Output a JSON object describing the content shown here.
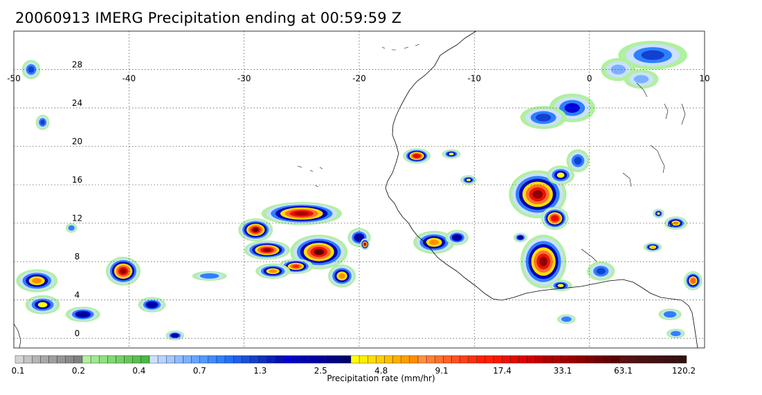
{
  "title": "20060913 IMERG Precipitation ending at 00:59:59 Z",
  "map": {
    "lon_range": [
      -50,
      10
    ],
    "lat_range": [
      -1,
      32
    ],
    "lon_ticks": [
      -50,
      -40,
      -30,
      -20,
      -10,
      0,
      10
    ],
    "lon_tick_labels": [
      "-50",
      "-40",
      "-30",
      "-20",
      "-10",
      "0",
      "10"
    ],
    "lat_ticks": [
      0,
      4,
      8,
      12,
      16,
      20,
      24,
      28
    ],
    "lat_tick_labels": [
      "0",
      "4",
      "8",
      "12",
      "16",
      "20",
      "24",
      "28"
    ],
    "gridlines": true,
    "coastline_color": "#000000",
    "rain_cells": [
      {
        "lon": 5.5,
        "lat": 29.5,
        "rx": 3.0,
        "ry": 1.5,
        "level": 0.35
      },
      {
        "lon": 2.5,
        "lat": 28.0,
        "rx": 1.5,
        "ry": 1.2,
        "level": 0.25
      },
      {
        "lon": -1.5,
        "lat": 24.0,
        "rx": 2.0,
        "ry": 1.5,
        "level": 0.4
      },
      {
        "lon": -4.0,
        "lat": 23.0,
        "rx": 2.0,
        "ry": 1.2,
        "level": 0.35
      },
      {
        "lon": 4.5,
        "lat": 27.0,
        "rx": 1.5,
        "ry": 1.0,
        "level": 0.25
      },
      {
        "lon": -15.0,
        "lat": 19.0,
        "rx": 1.2,
        "ry": 0.8,
        "level": 0.75
      },
      {
        "lon": -12.0,
        "lat": 19.2,
        "rx": 0.8,
        "ry": 0.5,
        "level": 0.5
      },
      {
        "lon": -10.5,
        "lat": 16.5,
        "rx": 0.7,
        "ry": 0.5,
        "level": 0.5
      },
      {
        "lon": -4.5,
        "lat": 15.0,
        "rx": 2.5,
        "ry": 2.5,
        "level": 0.85
      },
      {
        "lon": -3.0,
        "lat": 12.5,
        "rx": 1.2,
        "ry": 1.2,
        "level": 0.75
      },
      {
        "lon": -2.5,
        "lat": 17.0,
        "rx": 1.2,
        "ry": 1.0,
        "level": 0.5
      },
      {
        "lon": -1.0,
        "lat": 18.5,
        "rx": 1.0,
        "ry": 1.2,
        "level": 0.35
      },
      {
        "lon": -4.0,
        "lat": 8.0,
        "rx": 2.0,
        "ry": 2.8,
        "level": 0.85
      },
      {
        "lon": -2.5,
        "lat": 5.5,
        "rx": 1.0,
        "ry": 0.6,
        "level": 0.5
      },
      {
        "lon": -13.5,
        "lat": 10.0,
        "rx": 1.8,
        "ry": 1.2,
        "level": 0.6
      },
      {
        "lon": -11.5,
        "lat": 10.5,
        "rx": 1.0,
        "ry": 0.8,
        "level": 0.45
      },
      {
        "lon": 1.0,
        "lat": 7.0,
        "rx": 1.2,
        "ry": 1.0,
        "level": 0.35
      },
      {
        "lon": 7.5,
        "lat": 12.0,
        "rx": 1.0,
        "ry": 0.7,
        "level": 0.6
      },
      {
        "lon": 9.0,
        "lat": 6.0,
        "rx": 0.8,
        "ry": 1.0,
        "level": 0.65
      },
      {
        "lon": 5.5,
        "lat": 9.5,
        "rx": 0.8,
        "ry": 0.5,
        "level": 0.55
      },
      {
        "lon": 6.0,
        "lat": 13.0,
        "rx": 0.5,
        "ry": 0.5,
        "level": 0.5
      },
      {
        "lon": -29.0,
        "lat": 11.3,
        "rx": 1.5,
        "ry": 1.2,
        "level": 0.9
      },
      {
        "lon": -25.0,
        "lat": 13.0,
        "rx": 3.5,
        "ry": 1.2,
        "level": 0.8
      },
      {
        "lon": -28.0,
        "lat": 9.2,
        "rx": 2.0,
        "ry": 1.0,
        "level": 0.85
      },
      {
        "lon": -23.5,
        "lat": 9.0,
        "rx": 2.5,
        "ry": 1.8,
        "level": 0.9
      },
      {
        "lon": -25.5,
        "lat": 7.5,
        "rx": 1.5,
        "ry": 0.8,
        "level": 0.7
      },
      {
        "lon": -21.5,
        "lat": 6.5,
        "rx": 1.2,
        "ry": 1.2,
        "level": 0.6
      },
      {
        "lon": -20.0,
        "lat": 10.5,
        "rx": 1.0,
        "ry": 1.0,
        "level": 0.45
      },
      {
        "lon": -19.5,
        "lat": 9.8,
        "rx": 0.4,
        "ry": 0.6,
        "level": 0.8
      },
      {
        "lon": -27.5,
        "lat": 7.0,
        "rx": 1.5,
        "ry": 0.8,
        "level": 0.6
      },
      {
        "lon": -40.5,
        "lat": 7.0,
        "rx": 1.5,
        "ry": 1.5,
        "level": 0.85
      },
      {
        "lon": -48.0,
        "lat": 6.0,
        "rx": 1.8,
        "ry": 1.2,
        "level": 0.6
      },
      {
        "lon": -47.5,
        "lat": 3.5,
        "rx": 1.5,
        "ry": 1.0,
        "level": 0.5
      },
      {
        "lon": -44.0,
        "lat": 2.5,
        "rx": 1.5,
        "ry": 0.8,
        "level": 0.45
      },
      {
        "lon": -38.0,
        "lat": 3.5,
        "rx": 1.2,
        "ry": 0.8,
        "level": 0.45
      },
      {
        "lon": -36.0,
        "lat": 0.3,
        "rx": 0.8,
        "ry": 0.5,
        "level": 0.45
      },
      {
        "lon": -48.5,
        "lat": 28.0,
        "rx": 0.8,
        "ry": 1.0,
        "level": 0.35
      },
      {
        "lon": -47.5,
        "lat": 22.5,
        "rx": 0.6,
        "ry": 0.8,
        "level": 0.35
      },
      {
        "lon": -45.0,
        "lat": 11.5,
        "rx": 0.5,
        "ry": 0.5,
        "level": 0.3
      },
      {
        "lon": -33.0,
        "lat": 6.5,
        "rx": 1.5,
        "ry": 0.5,
        "level": 0.3
      },
      {
        "lon": 7.0,
        "lat": 2.5,
        "rx": 1.0,
        "ry": 0.6,
        "level": 0.3
      },
      {
        "lon": -2.0,
        "lat": 2.0,
        "rx": 0.8,
        "ry": 0.5,
        "level": 0.3
      },
      {
        "lon": 7.5,
        "lat": 0.5,
        "rx": 0.8,
        "ry": 0.5,
        "level": 0.3
      },
      {
        "lon": -6.0,
        "lat": 10.5,
        "rx": 0.6,
        "ry": 0.5,
        "level": 0.45
      }
    ]
  },
  "colorbar": {
    "ticks": [
      "0.1",
      "0.2",
      "0.4",
      "0.7",
      "1.3",
      "2.5",
      "4.8",
      "9.1",
      "17.4",
      "33.1",
      "63.1",
      "120.2"
    ],
    "label": "Precipitation rate (mm/hr)",
    "colors": [
      "#d4d4d4",
      "#c4c4c4",
      "#b4b4b4",
      "#a8a8a8",
      "#9e9e9e",
      "#949494",
      "#8a8a8a",
      "#808080",
      "#b0f0a0",
      "#a0e890",
      "#90e080",
      "#82d874",
      "#74d068",
      "#66c85c",
      "#58c050",
      "#4cb846",
      "#cce0ff",
      "#b8d4ff",
      "#a4c8ff",
      "#90bcff",
      "#7cb0ff",
      "#68a4ff",
      "#5498ff",
      "#408cff",
      "#2e80ff",
      "#2470f4",
      "#1e60e8",
      "#1850dc",
      "#1240d0",
      "#0c30c4",
      "#0820b8",
      "#0410ac",
      "#0000d8",
      "#0000c8",
      "#0000b8",
      "#0000a8",
      "#000098",
      "#000088",
      "#00007c",
      "#000070",
      "#ffff00",
      "#ffef00",
      "#ffdf00",
      "#ffcf00",
      "#ffbf00",
      "#ffaf00",
      "#ff9f00",
      "#ff8f00",
      "#ff9040",
      "#ff8038",
      "#ff7030",
      "#ff6028",
      "#ff5020",
      "#ff4018",
      "#ff3010",
      "#ff2008",
      "#ff2000",
      "#f81800",
      "#f01000",
      "#e80800",
      "#e00000",
      "#d00000",
      "#c00000",
      "#b00000",
      "#b00000",
      "#a40000",
      "#980000",
      "#8c0000",
      "#800000",
      "#740000",
      "#680000",
      "#5c0000",
      "#5c1010",
      "#561010",
      "#501010",
      "#4a1010",
      "#441010",
      "#3e1010",
      "#381010",
      "#321010"
    ]
  }
}
